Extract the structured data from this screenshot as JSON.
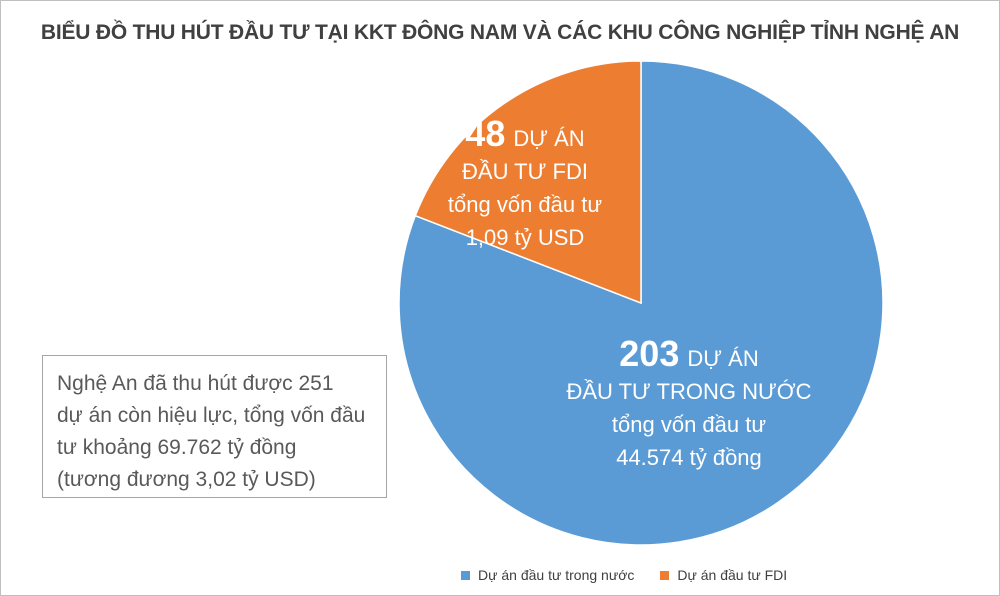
{
  "chart_data": {
    "type": "pie",
    "title": "BIỂU ĐỒ THU HÚT ĐẦU TƯ TẠI KKT ĐÔNG NAM VÀ CÁC KHU CÔNG NGHIỆP TỈNH NGHỆ AN",
    "categories": [
      "Dự án đầu tư trong nước",
      "Dự án đầu tư FDI"
    ],
    "values": [
      203,
      48
    ],
    "colors": [
      "#5b9bd5",
      "#ed7d31"
    ],
    "slice_labels": [
      {
        "count": "203",
        "lines": [
          "DỰ ÁN",
          "ĐẦU TƯ TRONG NƯỚC",
          "tổng vốn đầu tư",
          "44.574 tỷ đồng"
        ]
      },
      {
        "count": "48",
        "lines": [
          "DỰ ÁN",
          "ĐẦU TƯ FDI",
          "tổng vốn đầu tư",
          "1,09 tỷ USD"
        ]
      }
    ],
    "legend_position": "bottom-right"
  },
  "annotation": {
    "lines": [
      "Nghệ An đã thu hút được 251",
      "dự án còn hiệu lực, tổng vốn đầu",
      "tư khoảng 69.762 tỷ đồng",
      "(tương đương 3,02 tỷ USD)"
    ]
  }
}
